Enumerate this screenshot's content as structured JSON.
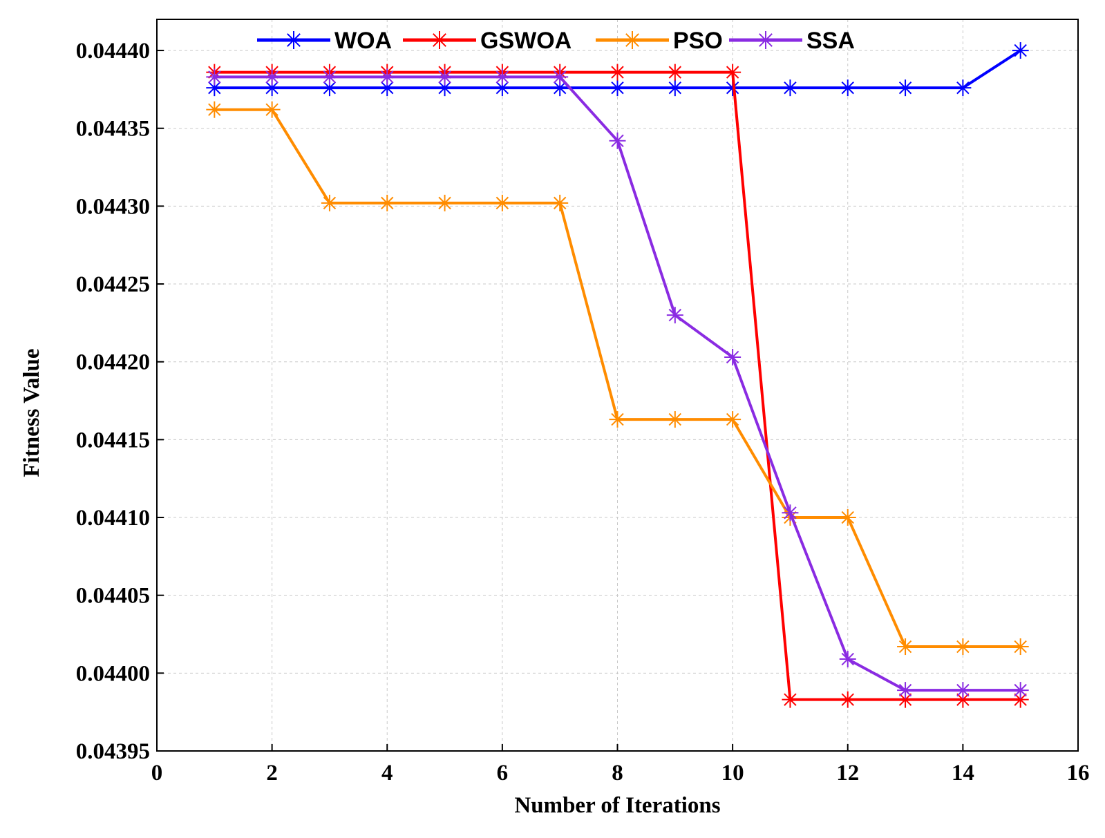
{
  "chart_data": {
    "type": "line",
    "title": "",
    "xlabel": "Number of Iterations",
    "ylabel": "Fitness Value",
    "xlim": [
      0,
      16
    ],
    "ylim": [
      0.04395,
      0.04442
    ],
    "x_ticks": [
      "0",
      "2",
      "4",
      "6",
      "8",
      "10",
      "12",
      "14",
      "16"
    ],
    "x_tick_values": [
      0,
      2,
      4,
      6,
      8,
      10,
      12,
      14,
      16
    ],
    "y_ticks": [
      "0.04395",
      "0.04400",
      "0.04405",
      "0.04410",
      "0.04415",
      "0.04420",
      "0.04425",
      "0.04430",
      "0.04435",
      "0.04440"
    ],
    "y_tick_values": [
      0.04395,
      0.044,
      0.04405,
      0.0441,
      0.04415,
      0.0442,
      0.04425,
      0.0443,
      0.04435,
      0.0444
    ],
    "grid": true,
    "legend_position": "top",
    "x": [
      1,
      2,
      3,
      4,
      5,
      6,
      7,
      8,
      9,
      10,
      11,
      12,
      13,
      14,
      15
    ],
    "series": [
      {
        "name": "WOA",
        "color": "#0000ff",
        "marker": "asterisk",
        "values": [
          0.044376,
          0.044376,
          0.044376,
          0.044376,
          0.044376,
          0.044376,
          0.044376,
          0.044376,
          0.044376,
          0.044376,
          0.044376,
          0.044376,
          0.044376,
          0.044376,
          0.0444
        ]
      },
      {
        "name": "GSWOA",
        "color": "#ff0000",
        "marker": "asterisk",
        "values": [
          0.044386,
          0.044386,
          0.044386,
          0.044386,
          0.044386,
          0.044386,
          0.044386,
          0.044386,
          0.044386,
          0.044386,
          0.043983,
          0.043983,
          0.043983,
          0.043983,
          0.043983
        ]
      },
      {
        "name": "PSO",
        "color": "#ff8c00",
        "marker": "asterisk",
        "values": [
          0.044362,
          0.044362,
          0.044302,
          0.044302,
          0.044302,
          0.044302,
          0.044302,
          0.044163,
          0.044163,
          0.044163,
          0.0441,
          0.0441,
          0.044017,
          0.044017,
          0.044017
        ]
      },
      {
        "name": "SSA",
        "color": "#8a2be2",
        "marker": "asterisk",
        "values": [
          0.044383,
          0.044383,
          0.044383,
          0.044383,
          0.044383,
          0.044383,
          0.044383,
          0.044342,
          0.04423,
          0.044203,
          0.044103,
          0.044009,
          0.043989,
          0.043989,
          0.043989
        ]
      }
    ]
  }
}
